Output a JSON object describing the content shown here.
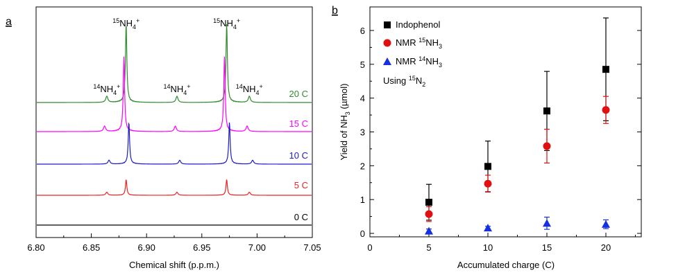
{
  "panels": {
    "a": "a",
    "b": "b"
  },
  "chart_data": [
    {
      "type": "line",
      "panel": "a",
      "xlabel": "Chemical shift (p.p.m.)",
      "ylabel": "",
      "xlim": [
        6.8,
        7.05
      ],
      "x_ticks": [
        "6.80",
        "6.85",
        "6.90",
        "6.95",
        "7.00",
        "7.05"
      ],
      "peak_labels": [
        {
          "x": 6.8815,
          "iso": "15",
          "text": "NH",
          "sub": "4",
          "charge": "+"
        },
        {
          "x": 6.9725,
          "iso": "15",
          "text": "NH",
          "sub": "4",
          "charge": "+"
        },
        {
          "x": 6.864,
          "iso": "14",
          "text": "NH",
          "sub": "4",
          "charge": "+"
        },
        {
          "x": 6.9275,
          "iso": "14",
          "text": "NH",
          "sub": "4",
          "charge": "+"
        },
        {
          "x": 6.993,
          "iso": "14",
          "text": "NH",
          "sub": "4",
          "charge": "+"
        }
      ],
      "series": [
        {
          "name": "20 C",
          "color": "#2e8b2e",
          "small_peaks": [
            6.864,
            6.9275,
            6.993
          ],
          "main_peaks": [
            6.8815,
            6.9725
          ],
          "main_height": 1.0,
          "small_height": 0.08
        },
        {
          "name": "15 C",
          "color": "#ff00ff",
          "small_peaks": [
            6.862,
            6.926,
            6.991
          ],
          "main_peaks": [
            6.8795,
            6.9705
          ],
          "main_height": 0.95,
          "small_height": 0.07
        },
        {
          "name": "10 C",
          "color": "#1a1acc",
          "small_peaks": [
            6.866,
            6.93,
            6.996
          ],
          "main_peaks": [
            6.884,
            6.975
          ],
          "main_height": 0.53,
          "small_height": 0.05
        },
        {
          "name": "5 C",
          "color": "#ee2020",
          "small_peaks": [
            6.864,
            6.9275,
            6.993
          ],
          "main_peaks": [
            6.8815,
            6.9725
          ],
          "main_height": 0.2,
          "small_height": 0.04
        },
        {
          "name": "0 C",
          "color": "#000000",
          "small_peaks": [],
          "main_peaks": [],
          "main_height": 0.0,
          "small_height": 0.0
        }
      ]
    },
    {
      "type": "scatter",
      "panel": "b",
      "xlabel": "Accumulated charge (C)",
      "ylabel_parts": {
        "pre": "Yield of NH",
        "sub": "3",
        "post": " (µmol)"
      },
      "xlim": [
        0,
        23
      ],
      "ylim": [
        0,
        6.5
      ],
      "x_ticks": [
        0,
        5,
        10,
        15,
        20
      ],
      "y_ticks": [
        0,
        1,
        2,
        3,
        4,
        5,
        6
      ],
      "legend_position": "top-left",
      "legend_note": {
        "pre": "Using ",
        "iso": "15",
        "text": "N",
        "sub": "2"
      },
      "series": [
        {
          "name": "Indophenol",
          "legend": {
            "pre": "Indophenol",
            "iso": "",
            "text": "",
            "sub": ""
          },
          "marker": "square",
          "color": "#000000",
          "x": [
            5,
            10,
            15,
            20
          ],
          "y": [
            0.92,
            1.98,
            3.62,
            4.85
          ],
          "err": [
            0.53,
            0.75,
            1.17,
            1.52
          ]
        },
        {
          "name": "NMR 15NH3",
          "legend": {
            "pre": "NMR ",
            "iso": "15",
            "text": "NH",
            "sub": "3"
          },
          "marker": "circle",
          "color": "#e01010",
          "x": [
            5,
            10,
            15,
            20
          ],
          "y": [
            0.57,
            1.47,
            2.58,
            3.65
          ],
          "err": [
            0.22,
            0.25,
            0.5,
            0.4
          ]
        },
        {
          "name": "NMR 14NH3",
          "legend": {
            "pre": "NMR ",
            "iso": "14",
            "text": "NH",
            "sub": "3"
          },
          "marker": "triangle",
          "color": "#1530e0",
          "x": [
            5,
            10,
            15,
            20
          ],
          "y": [
            0.07,
            0.16,
            0.3,
            0.27
          ],
          "err": [
            0.06,
            0.05,
            0.18,
            0.13
          ]
        }
      ]
    }
  ]
}
